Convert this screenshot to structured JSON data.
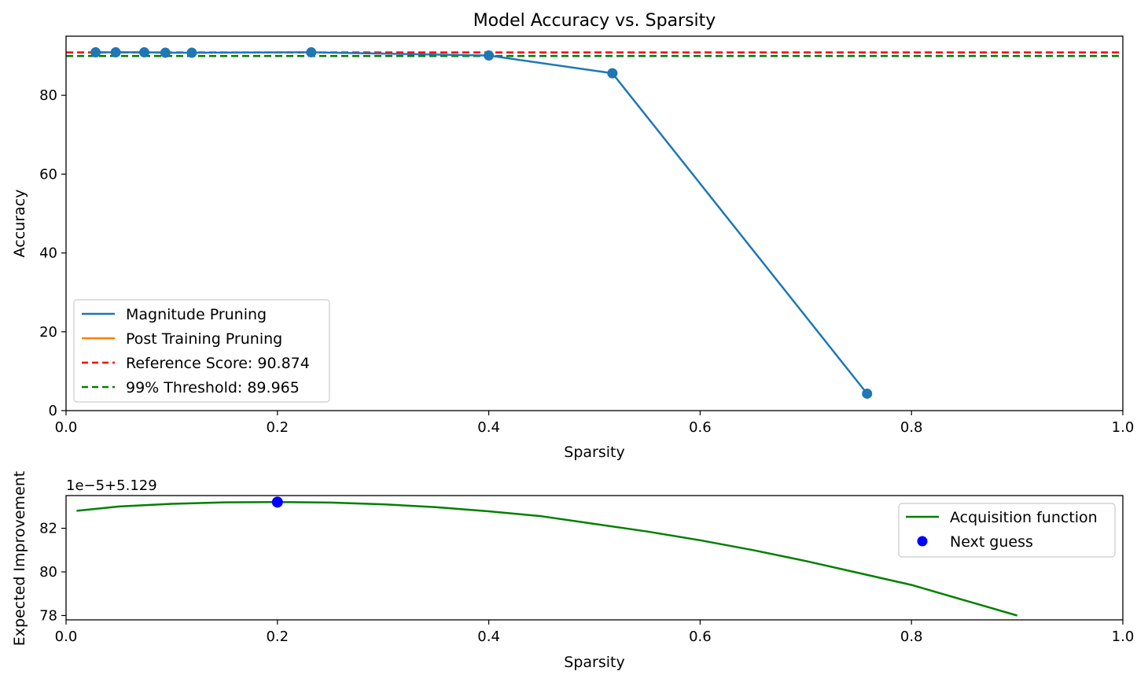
{
  "chart_data": [
    {
      "type": "line",
      "title": "Model Accuracy vs. Sparsity",
      "xlabel": "Sparsity",
      "ylabel": "Accuracy",
      "xlim": [
        0.0,
        1.0
      ],
      "ylim": [
        0,
        95
      ],
      "x_ticks": [
        "0.0",
        "0.2",
        "0.4",
        "0.6",
        "0.8",
        "1.0"
      ],
      "y_ticks": [
        "0",
        "20",
        "40",
        "60",
        "80"
      ],
      "grid": false,
      "legend_position": "lower-left",
      "series": [
        {
          "name": "Magnitude Pruning",
          "color": "#1f77b4",
          "marker": "circle",
          "x": [
            0.028,
            0.047,
            0.074,
            0.094,
            0.119,
            0.232,
            0.4,
            0.517,
            0.758
          ],
          "y": [
            90.9,
            90.9,
            90.9,
            90.8,
            90.8,
            90.9,
            90.1,
            85.6,
            4.3
          ]
        },
        {
          "name": "Post Training Pruning",
          "color": "#ff7f0e",
          "x": [],
          "y": []
        }
      ],
      "hlines": [
        {
          "name": "Reference Score: 90.874",
          "value": 90.874,
          "color": "#ff0000",
          "style": "dashed"
        },
        {
          "name": "99% Threshold: 89.965",
          "value": 89.965,
          "color": "#008000",
          "style": "dashed"
        }
      ]
    },
    {
      "type": "line",
      "title": "",
      "xlabel": "Sparsity",
      "ylabel": "Expected Improvement",
      "offset_text": "1e−5+5.129",
      "xlim": [
        0.0,
        1.0
      ],
      "ylim": [
        77.8,
        83.5
      ],
      "x_ticks": [
        "0.0",
        "0.2",
        "0.4",
        "0.6",
        "0.8",
        "1.0"
      ],
      "y_ticks": [
        "78",
        "80",
        "82"
      ],
      "grid": false,
      "legend_position": "upper-right",
      "series": [
        {
          "name": "Acquisition function",
          "color": "#008000",
          "x": [
            0.01,
            0.05,
            0.1,
            0.15,
            0.2,
            0.25,
            0.3,
            0.35,
            0.4,
            0.45,
            0.5,
            0.55,
            0.6,
            0.65,
            0.7,
            0.75,
            0.8,
            0.85,
            0.9
          ],
          "y": [
            82.8,
            83.0,
            83.12,
            83.19,
            83.2,
            83.18,
            83.1,
            82.97,
            82.78,
            82.55,
            82.2,
            81.85,
            81.45,
            81.0,
            80.5,
            79.95,
            79.4,
            78.7,
            78.0
          ]
        },
        {
          "name": "Next guess",
          "color": "#0000ff",
          "marker": "circle",
          "x": [
            0.2
          ],
          "y": [
            83.2
          ]
        }
      ]
    }
  ]
}
